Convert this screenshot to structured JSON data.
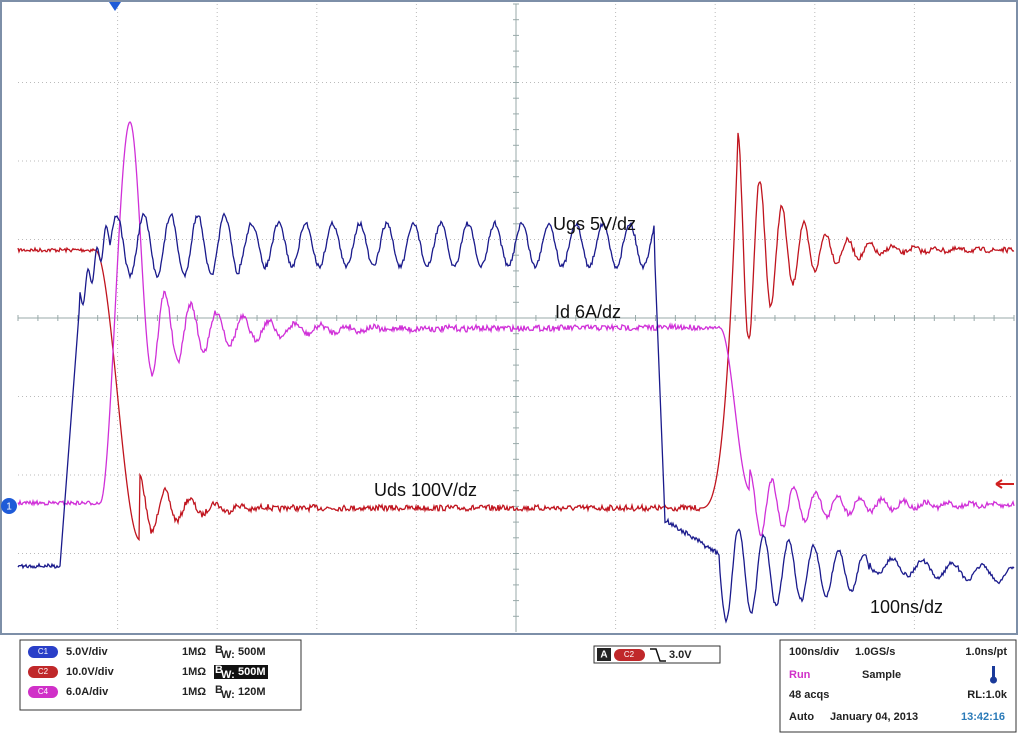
{
  "screen": {
    "trace_labels": [
      "Ugs 5V/dz",
      "Id 6A/dz",
      "Uds 100V/dz",
      "100ns/dz"
    ],
    "ground_marker": "1"
  },
  "channels": [
    {
      "badge": "C1",
      "scale": "5.0V/div",
      "impedance": "1MΩ",
      "bandwidth": "500M"
    },
    {
      "badge": "C2",
      "scale": "10.0V/div",
      "impedance": "1MΩ",
      "bandwidth": "500M"
    },
    {
      "badge": "C4",
      "scale": "6.0A/div",
      "impedance": "1MΩ",
      "bandwidth": "120M"
    }
  ],
  "bandwidth_symbol": "B",
  "bandwidth_subscript": "W:",
  "trigger": {
    "mode": "A",
    "source": "C2",
    "level": "3.0V"
  },
  "acquisition": {
    "timebase": "100ns/div",
    "sample_rate": "1.0GS/s",
    "resolution": "1.0ns/pt",
    "state": "Run",
    "mode": "Sample",
    "acquisitions": "48 acqs",
    "record_length": "RL:1.0k",
    "trigger_mode": "Auto",
    "date": "January 04, 2013",
    "time": "13:42:16"
  }
}
